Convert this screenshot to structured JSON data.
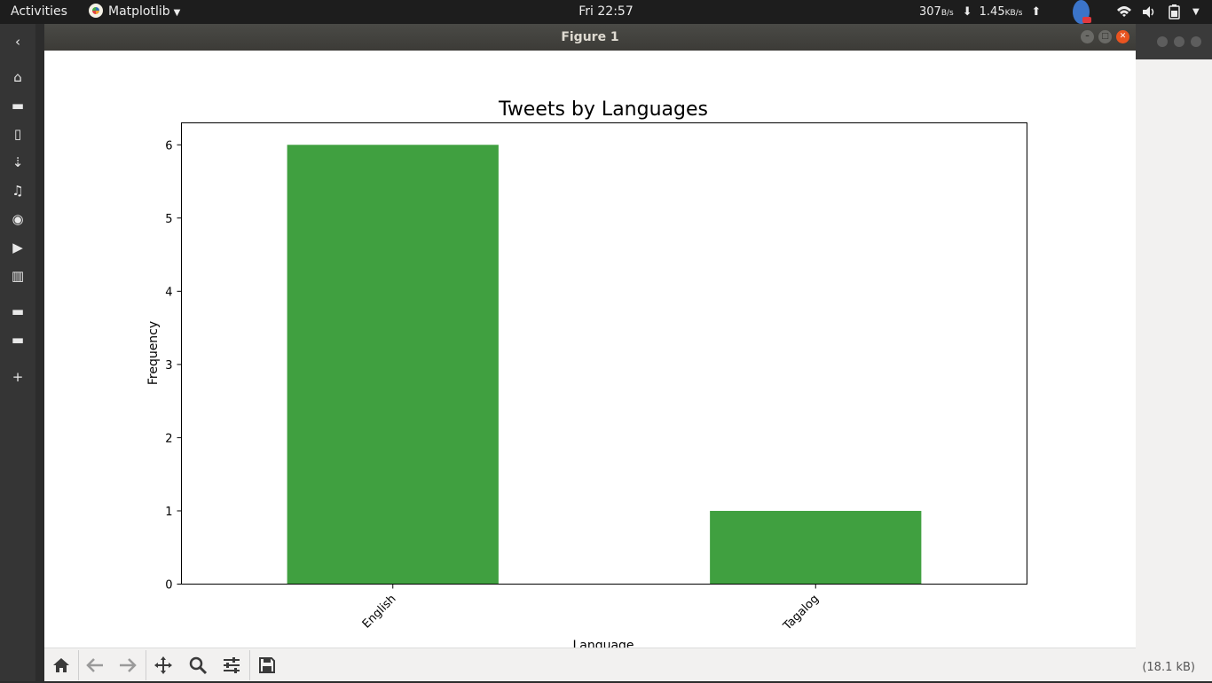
{
  "topbar": {
    "activities": "Activities",
    "app_name": "Matplotlib",
    "clock": "Fri 22:57",
    "net_down": "307",
    "net_down_unit": "B/s",
    "net_up": "1.45",
    "net_up_unit": "KB/s"
  },
  "window": {
    "title": "Figure 1"
  },
  "background_window": {
    "status_text": "(18.1 kB)"
  },
  "toolbar": {
    "buttons": [
      "home",
      "back",
      "forward",
      "pan",
      "zoom",
      "configure-subplots",
      "save"
    ]
  },
  "colors": {
    "bar": "#40a040",
    "accent_close": "#e95420"
  },
  "chart_data": {
    "type": "bar",
    "title": "Tweets by Languages",
    "xlabel": "Language",
    "ylabel": "Frequency",
    "categories": [
      "English",
      "Tagalog"
    ],
    "values": [
      6,
      1
    ],
    "ylim": [
      0,
      6.3
    ],
    "yticks": [
      0,
      1,
      2,
      3,
      4,
      5,
      6
    ],
    "xtick_rotation": 45,
    "grid": false,
    "legend": "none"
  }
}
